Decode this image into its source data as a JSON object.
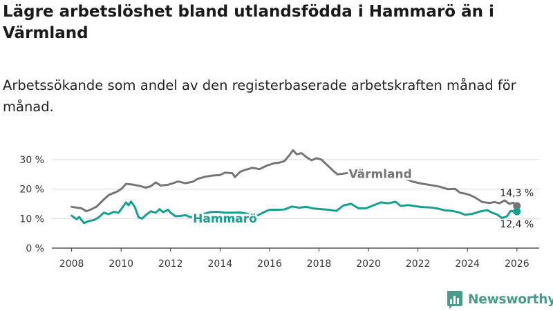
{
  "header": {
    "title": "Lägre arbetslöshet bland utlandsfödda i Hammarö än i Värmland",
    "subtitle": "Arbetssökande som andel av den registerbaserade arbetskraften månad för månad."
  },
  "colors": {
    "varmland": "#757575",
    "hammaro": "#16a08f",
    "grid": "#d6d6d6",
    "axis": "#333333",
    "logo": "#4a9c8a"
  },
  "logo": {
    "text": "Newsworthy",
    "icon": "bar-chart-logo-icon"
  },
  "chart_data": {
    "type": "line",
    "title": "Lägre arbetslöshet bland utlandsfödda i Hammarö än i Värmland",
    "xlabel": "",
    "ylabel": "",
    "xlim": [
      2007.2,
      2026.9
    ],
    "ylim": [
      0,
      30
    ],
    "grid": "horizontal",
    "y_ticks": [
      0,
      10,
      20,
      30
    ],
    "y_tick_labels": [
      "0 %",
      "10 %",
      "20 %",
      "30 %"
    ],
    "x_ticks": [
      2008,
      2010,
      2012,
      2014,
      2016,
      2018,
      2020,
      2022,
      2024,
      2026
    ],
    "x_tick_labels": [
      "2008",
      "2010",
      "2012",
      "2014",
      "2016",
      "2018",
      "2020",
      "2022",
      "2024",
      "2026"
    ],
    "series": [
      {
        "name": "Värmland",
        "label": "Värmland",
        "end_label": "14,3 %",
        "end_value": 14.3,
        "points": [
          [
            2008.0,
            14.0
          ],
          [
            2008.4,
            13.5
          ],
          [
            2008.6,
            12.5
          ],
          [
            2008.8,
            13.2
          ],
          [
            2009.0,
            14.0
          ],
          [
            2009.3,
            16.5
          ],
          [
            2009.5,
            18.0
          ],
          [
            2009.8,
            19.0
          ],
          [
            2010.0,
            20.0
          ],
          [
            2010.2,
            21.8
          ],
          [
            2010.5,
            21.5
          ],
          [
            2010.8,
            21.0
          ],
          [
            2011.0,
            20.5
          ],
          [
            2011.2,
            21.0
          ],
          [
            2011.4,
            22.3
          ],
          [
            2011.6,
            21.2
          ],
          [
            2011.9,
            21.5
          ],
          [
            2012.1,
            22.0
          ],
          [
            2012.3,
            22.6
          ],
          [
            2012.6,
            22.0
          ],
          [
            2012.9,
            22.5
          ],
          [
            2013.1,
            23.5
          ],
          [
            2013.4,
            24.2
          ],
          [
            2013.7,
            24.6
          ],
          [
            2014.0,
            24.8
          ],
          [
            2014.2,
            25.6
          ],
          [
            2014.5,
            25.4
          ],
          [
            2014.6,
            24.1
          ],
          [
            2014.8,
            25.8
          ],
          [
            2015.0,
            26.5
          ],
          [
            2015.3,
            27.2
          ],
          [
            2015.6,
            26.8
          ],
          [
            2015.9,
            28.0
          ],
          [
            2016.2,
            28.8
          ],
          [
            2016.4,
            29.0
          ],
          [
            2016.6,
            29.5
          ],
          [
            2016.8,
            31.5
          ],
          [
            2016.95,
            33.2
          ],
          [
            2017.1,
            31.8
          ],
          [
            2017.3,
            32.2
          ],
          [
            2017.5,
            30.8
          ],
          [
            2017.7,
            29.8
          ],
          [
            2017.9,
            30.5
          ],
          [
            2018.1,
            30.0
          ],
          [
            2018.4,
            27.6
          ],
          [
            2018.6,
            26.0
          ],
          [
            2018.75,
            25.0
          ],
          [
            2019.2,
            25.5
          ],
          [
            2019.6,
            25.5
          ],
          [
            2020.0,
            25.0
          ],
          [
            2020.5,
            25.0
          ],
          [
            2021.0,
            24.5
          ],
          [
            2021.5,
            23.5
          ],
          [
            2021.8,
            22.5
          ],
          [
            2022.2,
            21.8
          ],
          [
            2022.5,
            21.4
          ],
          [
            2022.9,
            20.8
          ],
          [
            2023.2,
            20.0
          ],
          [
            2023.5,
            20.1
          ],
          [
            2023.7,
            18.8
          ],
          [
            2023.9,
            18.5
          ],
          [
            2024.1,
            18.0
          ],
          [
            2024.3,
            17.2
          ],
          [
            2024.6,
            15.6
          ],
          [
            2024.9,
            15.3
          ],
          [
            2025.1,
            15.6
          ],
          [
            2025.3,
            15.2
          ],
          [
            2025.5,
            16.2
          ],
          [
            2025.7,
            15.0
          ],
          [
            2025.85,
            15.4
          ],
          [
            2026.0,
            14.3
          ]
        ]
      },
      {
        "name": "Hammarö",
        "label": "Hammarö",
        "end_label": "12,4 %",
        "end_value": 12.4,
        "points": [
          [
            2008.0,
            11.0
          ],
          [
            2008.2,
            9.8
          ],
          [
            2008.3,
            10.6
          ],
          [
            2008.5,
            8.5
          ],
          [
            2008.7,
            9.2
          ],
          [
            2008.9,
            9.5
          ],
          [
            2009.1,
            10.5
          ],
          [
            2009.3,
            12.0
          ],
          [
            2009.5,
            11.5
          ],
          [
            2009.7,
            12.3
          ],
          [
            2009.9,
            12.0
          ],
          [
            2010.0,
            13.2
          ],
          [
            2010.2,
            15.5
          ],
          [
            2010.3,
            14.5
          ],
          [
            2010.4,
            15.8
          ],
          [
            2010.55,
            14.0
          ],
          [
            2010.7,
            10.5
          ],
          [
            2010.85,
            10.0
          ],
          [
            2011.0,
            11.2
          ],
          [
            2011.2,
            12.5
          ],
          [
            2011.4,
            12.0
          ],
          [
            2011.55,
            13.2
          ],
          [
            2011.7,
            12.2
          ],
          [
            2011.9,
            13.0
          ],
          [
            2012.0,
            12.0
          ],
          [
            2012.2,
            10.8
          ],
          [
            2012.4,
            10.9
          ],
          [
            2012.6,
            11.2
          ],
          [
            2012.8,
            10.5
          ],
          [
            2013.0,
            11.2
          ],
          [
            2013.3,
            11.5
          ],
          [
            2013.6,
            12.2
          ],
          [
            2013.9,
            12.3
          ],
          [
            2014.2,
            12.0
          ],
          [
            2014.5,
            12.0
          ],
          [
            2014.8,
            12.1
          ],
          [
            2015.2,
            11.5
          ],
          [
            2015.5,
            11.0
          ],
          [
            2015.8,
            12.3
          ],
          [
            2016.0,
            13.0
          ],
          [
            2016.3,
            13.0
          ],
          [
            2016.6,
            13.1
          ],
          [
            2016.9,
            14.1
          ],
          [
            2017.2,
            13.7
          ],
          [
            2017.5,
            14.0
          ],
          [
            2017.8,
            13.4
          ],
          [
            2018.1,
            13.2
          ],
          [
            2018.4,
            13.0
          ],
          [
            2018.7,
            12.6
          ],
          [
            2019.0,
            14.5
          ],
          [
            2019.3,
            15.0
          ],
          [
            2019.6,
            13.5
          ],
          [
            2019.9,
            13.5
          ],
          [
            2020.2,
            14.5
          ],
          [
            2020.5,
            15.5
          ],
          [
            2020.8,
            15.2
          ],
          [
            2021.1,
            15.7
          ],
          [
            2021.3,
            14.3
          ],
          [
            2021.6,
            14.6
          ],
          [
            2021.9,
            14.2
          ],
          [
            2022.2,
            13.9
          ],
          [
            2022.5,
            13.8
          ],
          [
            2022.8,
            13.4
          ],
          [
            2023.1,
            12.8
          ],
          [
            2023.4,
            12.6
          ],
          [
            2023.7,
            12.0
          ],
          [
            2023.9,
            11.3
          ],
          [
            2024.2,
            11.6
          ],
          [
            2024.5,
            12.4
          ],
          [
            2024.8,
            12.9
          ],
          [
            2025.0,
            12.0
          ],
          [
            2025.2,
            11.4
          ],
          [
            2025.4,
            10.2
          ],
          [
            2025.6,
            10.8
          ],
          [
            2025.75,
            12.6
          ],
          [
            2026.0,
            12.4
          ]
        ]
      }
    ]
  }
}
